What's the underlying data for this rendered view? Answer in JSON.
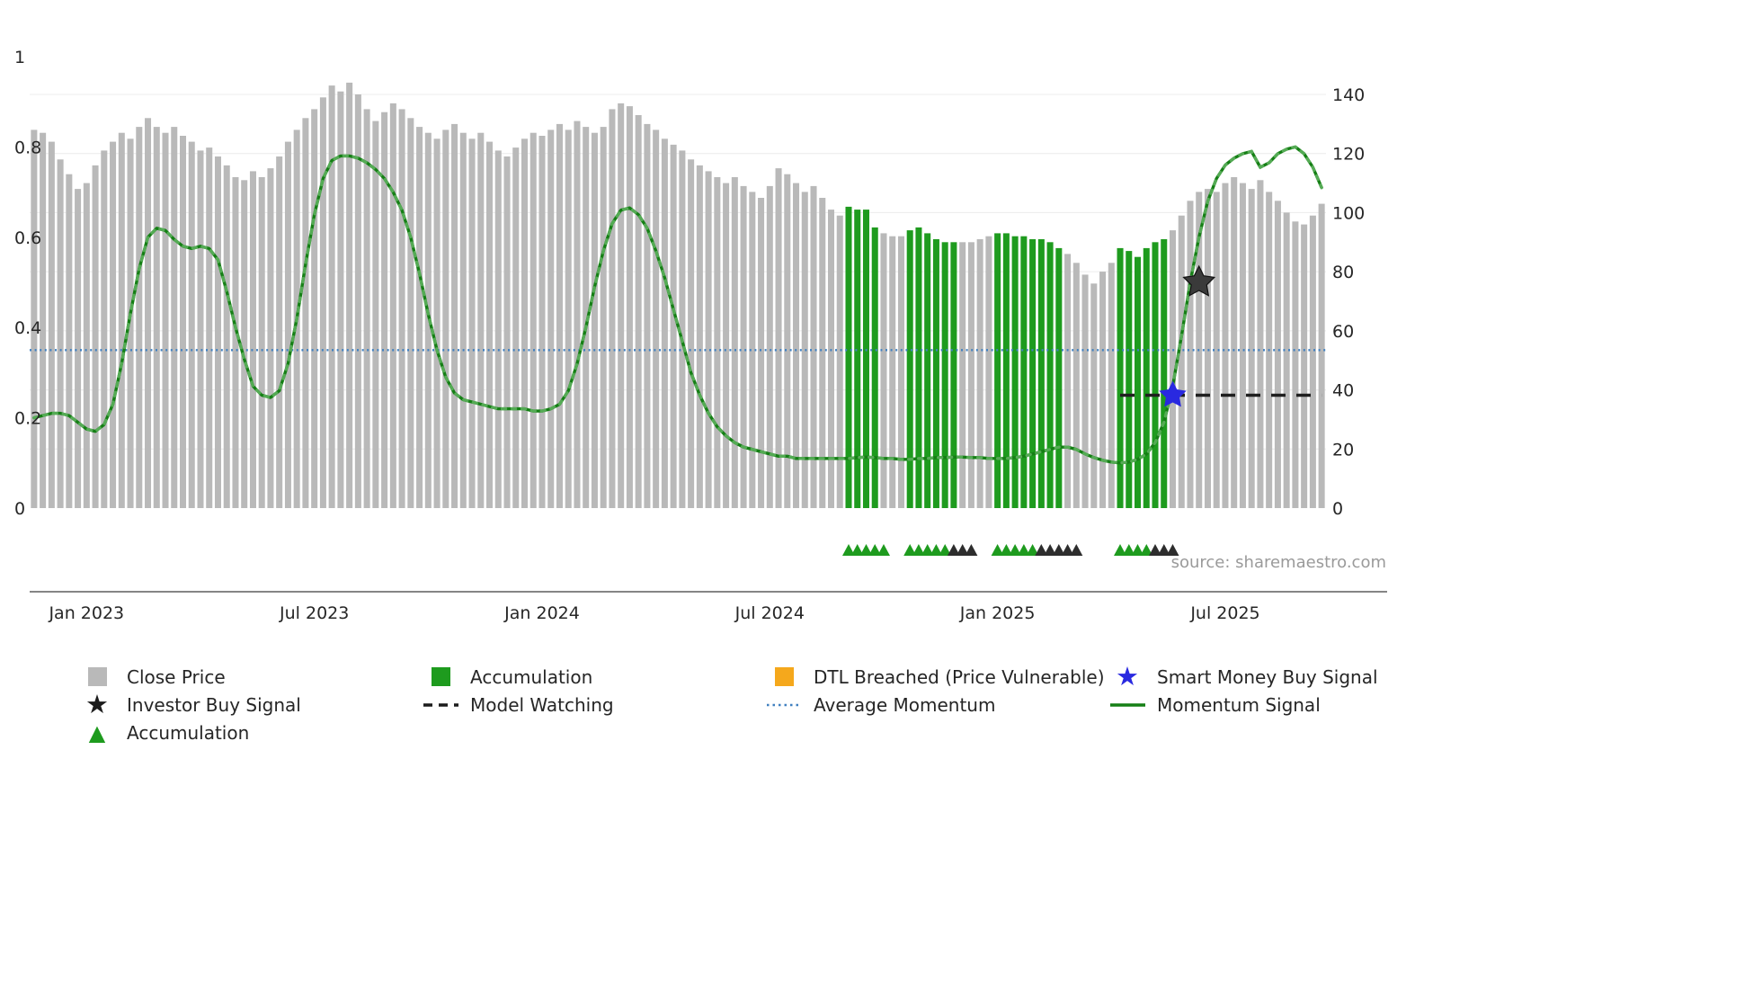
{
  "source_text": "source: sharemaestro.com",
  "legend": {
    "items": [
      {
        "label": "Close Price",
        "swatch": "square",
        "color": "#b9b9b9"
      },
      {
        "label": "Accumulation",
        "swatch": "square",
        "color": "#1e9b1e"
      },
      {
        "label": "DTL Breached (Price Vulnerable)",
        "swatch": "square",
        "color": "#f5a81c"
      },
      {
        "label": "Smart Money Buy Signal",
        "swatch": "star",
        "color": "#2929e0"
      },
      {
        "label": "Investor Buy Signal",
        "swatch": "star",
        "color": "#1c1c1c"
      },
      {
        "label": "Model Watching",
        "swatch": "dashed-line",
        "color": "#1c1c1c"
      },
      {
        "label": "Average Momentum",
        "swatch": "dotted-line",
        "color": "#4080c0"
      },
      {
        "label": "Momentum Signal",
        "swatch": "solid-line",
        "color": "#157f15"
      },
      {
        "label": "Accumulation",
        "swatch": "triangle",
        "color": "#1e9b1e"
      }
    ]
  },
  "chart_data": {
    "type": "bar+line",
    "title": "",
    "x_tick_labels": [
      "Jan 2023",
      "Jul 2023",
      "Jan 2024",
      "Jul 2024",
      "Jan 2025",
      "Jul 2025"
    ],
    "x_tick_indices": [
      6,
      32,
      58,
      84,
      110,
      136
    ],
    "left_axis": {
      "tick_labels": [
        "0",
        "0.2",
        "0.4",
        "0.6",
        "0.8",
        "1"
      ],
      "range": [
        0,
        1
      ],
      "applies_to": "Momentum Signal, Average Momentum, Model Watching"
    },
    "right_axis": {
      "tick_labels": [
        "0",
        "20",
        "40",
        "60",
        "80",
        "100",
        "120",
        "140"
      ],
      "applies_to": "Close Price"
    },
    "colors": {
      "close_price_bar": "#b9b9b9",
      "accumulation_bar": "#1e9b1e",
      "triangle_green": "#1e9b1e",
      "triangle_dark": "#2d2d2d"
    },
    "series": [
      {
        "name": "Close Price",
        "type": "bar",
        "axis": "right",
        "values": [
          128,
          127,
          124,
          118,
          113,
          108,
          110,
          116,
          121,
          124,
          127,
          125,
          129,
          132,
          129,
          127,
          129,
          126,
          124,
          121,
          122,
          119,
          116,
          112,
          111,
          114,
          112,
          115,
          119,
          124,
          128,
          132,
          135,
          139,
          143,
          141,
          144,
          140,
          135,
          131,
          134,
          137,
          135,
          132,
          129,
          127,
          125,
          128,
          130,
          127,
          125,
          127,
          124,
          121,
          119,
          122,
          125,
          127,
          126,
          128,
          130,
          128,
          131,
          129,
          127,
          129,
          135,
          137,
          136,
          133,
          130,
          128,
          125,
          123,
          121,
          118,
          116,
          114,
          112,
          110,
          112,
          109,
          107,
          105,
          109,
          115,
          113,
          110,
          107,
          109,
          105,
          101,
          99,
          102,
          101,
          101,
          95,
          93,
          92,
          92,
          94,
          95,
          93,
          91,
          90,
          90,
          90,
          90,
          91,
          92,
          93,
          93,
          92,
          92,
          91,
          91,
          90,
          88,
          86,
          83,
          79,
          76,
          80,
          83,
          88,
          87,
          85,
          88,
          90,
          91,
          94,
          99,
          104,
          107,
          108,
          107,
          110,
          112,
          110,
          108,
          111,
          107,
          104,
          100,
          97,
          96,
          99,
          103
        ]
      },
      {
        "name": "Momentum Signal",
        "type": "line",
        "axis": "left",
        "color": "#157f15",
        "values": [
          0.2,
          0.205,
          0.21,
          0.21,
          0.205,
          0.19,
          0.175,
          0.17,
          0.185,
          0.23,
          0.32,
          0.43,
          0.53,
          0.6,
          0.62,
          0.615,
          0.595,
          0.58,
          0.575,
          0.58,
          0.575,
          0.55,
          0.48,
          0.4,
          0.33,
          0.27,
          0.25,
          0.245,
          0.26,
          0.32,
          0.42,
          0.54,
          0.65,
          0.73,
          0.77,
          0.78,
          0.78,
          0.775,
          0.765,
          0.75,
          0.73,
          0.7,
          0.66,
          0.6,
          0.52,
          0.43,
          0.35,
          0.29,
          0.255,
          0.24,
          0.235,
          0.23,
          0.225,
          0.22,
          0.22,
          0.22,
          0.22,
          0.215,
          0.215,
          0.22,
          0.23,
          0.26,
          0.32,
          0.4,
          0.49,
          0.57,
          0.63,
          0.66,
          0.665,
          0.65,
          0.62,
          0.57,
          0.51,
          0.44,
          0.37,
          0.3,
          0.25,
          0.21,
          0.18,
          0.16,
          0.145,
          0.135,
          0.13,
          0.125,
          0.12,
          0.115,
          0.115,
          0.11,
          0.11,
          0.11,
          0.11,
          0.11,
          0.11,
          0.11,
          0.112,
          0.113,
          0.112,
          0.11,
          0.11,
          0.108,
          0.108,
          0.11,
          0.11,
          0.112,
          0.112,
          0.113,
          0.113,
          0.112,
          0.112,
          0.11,
          0.11,
          0.11,
          0.112,
          0.115,
          0.12,
          0.125,
          0.13,
          0.135,
          0.135,
          0.13,
          0.12,
          0.112,
          0.106,
          0.102,
          0.1,
          0.102,
          0.108,
          0.12,
          0.145,
          0.19,
          0.27,
          0.38,
          0.5,
          0.6,
          0.68,
          0.73,
          0.76,
          0.775,
          0.785,
          0.79,
          0.755,
          0.765,
          0.785,
          0.795,
          0.8,
          0.785,
          0.755,
          0.71
        ]
      },
      {
        "name": "Average Momentum",
        "type": "hline",
        "axis": "left",
        "value": 0.35,
        "style": "dotted",
        "color": "#4080c0"
      },
      {
        "name": "Model Watching",
        "type": "segment",
        "axis": "left",
        "value": 0.25,
        "start_index": 124,
        "end_index": 147,
        "style": "dashed",
        "color": "#1f1f1f"
      }
    ],
    "accumulation_bar_indices": [
      93,
      94,
      95,
      96,
      100,
      101,
      102,
      103,
      104,
      105,
      110,
      111,
      112,
      113,
      114,
      115,
      116,
      117,
      124,
      125,
      126,
      127,
      128,
      129
    ],
    "markers": {
      "smart_money_buy_signal": {
        "index": 130,
        "value": 0.25,
        "color": "#2929e0"
      },
      "investor_buy_signal": {
        "index": 133,
        "value": 0.5,
        "color": "#3a3a3a"
      },
      "accumulation_triangle_indices": [
        93,
        94,
        95,
        96,
        97,
        100,
        101,
        102,
        103,
        104,
        110,
        111,
        112,
        113,
        114,
        124,
        125,
        126,
        127
      ],
      "dark_triangle_indices": [
        105,
        106,
        107,
        115,
        116,
        117,
        118,
        119,
        128,
        129,
        130
      ]
    },
    "grid": "horizontal-light",
    "legend_position": "bottom"
  }
}
